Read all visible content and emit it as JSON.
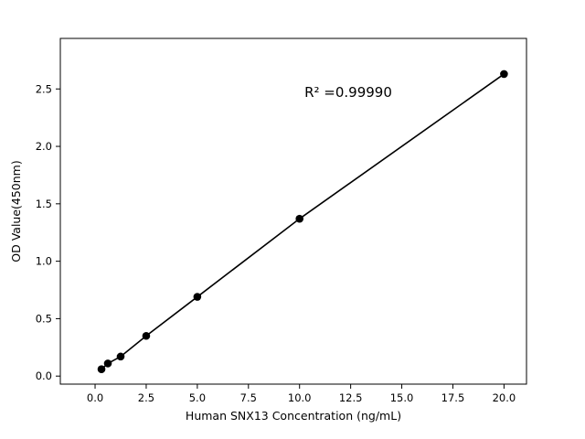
{
  "chart_data": {
    "type": "scatter",
    "series_name": "standard-curve",
    "x": [
      0.3125,
      0.625,
      1.25,
      2.5,
      5,
      10,
      20
    ],
    "y": [
      0.06,
      0.11,
      0.17,
      0.35,
      0.69,
      1.37,
      2.63
    ],
    "title": "",
    "xlabel": "Human SNX13 Concentration (ng/mL)",
    "ylabel": "OD Value(450nm)",
    "annotation": "R² =0.99990",
    "xlim": [
      -1.7,
      21.1
    ],
    "ylim": [
      -0.07,
      2.94
    ],
    "xticks": {
      "values": [
        0,
        2.5,
        5,
        7.5,
        10,
        12.5,
        15,
        17.5,
        20
      ],
      "labels": [
        "0.0",
        "2.5",
        "5.0",
        "7.5",
        "10.0",
        "12.5",
        "15.0",
        "17.5",
        "20.0"
      ]
    },
    "yticks": {
      "values": [
        0,
        0.5,
        1,
        1.5,
        2,
        2.5
      ],
      "labels": [
        "0.0",
        "0.5",
        "1.0",
        "1.5",
        "2.0",
        "2.5"
      ]
    },
    "line": true,
    "grid": false,
    "legend": "none",
    "line_color": "#000000",
    "marker_color": "#000000",
    "background_color": "#ffffff"
  }
}
